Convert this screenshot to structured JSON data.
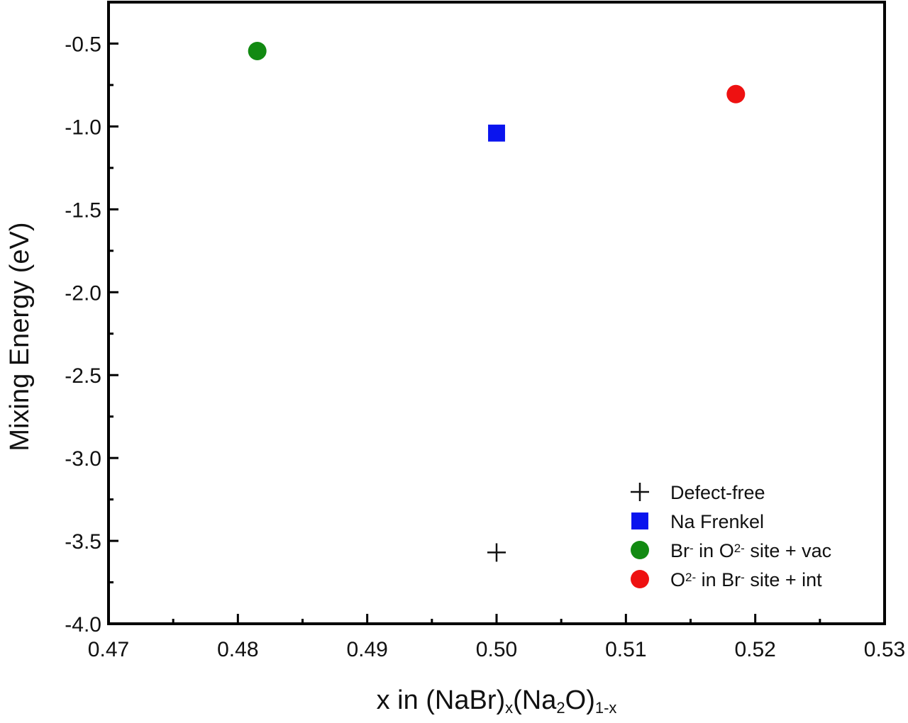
{
  "chart_data": {
    "type": "scatter",
    "title": "",
    "xlabel": {
      "prefix": "x in (NaBr)",
      "sub1": "x",
      "mid": "(Na",
      "sub2": "2",
      "mid2": "O)",
      "sub3": "1-x"
    },
    "ylabel": "Mixing Energy (eV)",
    "xlim": [
      0.47,
      0.53
    ],
    "ylim": [
      -4.0,
      -0.25
    ],
    "xticks": [
      "0.47",
      "0.48",
      "0.49",
      "0.50",
      "0.51",
      "0.52",
      "0.53"
    ],
    "xtick_values": [
      0.47,
      0.48,
      0.49,
      0.5,
      0.51,
      0.52,
      0.53
    ],
    "yticks": [
      "-0.5",
      "-1.0",
      "-1.5",
      "-2.0",
      "-2.5",
      "-3.0",
      "-3.5",
      "-4.0"
    ],
    "ytick_values": [
      -0.5,
      -1.0,
      -1.5,
      -2.0,
      -2.5,
      -3.0,
      -3.5,
      -4.0
    ],
    "grid": false,
    "legend_position": "bottom-right",
    "series": [
      {
        "id": "defect-free",
        "marker": "plus",
        "color": "#111111",
        "legend_parts": [
          {
            "t": "Defect-free"
          }
        ],
        "points": [
          {
            "x": 0.5,
            "y": -3.57
          }
        ]
      },
      {
        "id": "na-frenkel",
        "marker": "square",
        "color": "#0a14ee",
        "legend_parts": [
          {
            "t": "Na Frenkel"
          }
        ],
        "points": [
          {
            "x": 0.5,
            "y": -1.04
          }
        ]
      },
      {
        "id": "br-in-o-site-vac",
        "marker": "circle",
        "color": "#128a12",
        "legend_parts": [
          {
            "t": "Br"
          },
          {
            "t": "-",
            "sup": true
          },
          {
            "t": " in O"
          },
          {
            "t": "2-",
            "sup": true
          },
          {
            "t": " site + vac"
          }
        ],
        "points": [
          {
            "x": 0.4815,
            "y": -0.545
          }
        ]
      },
      {
        "id": "o-in-br-site-int",
        "marker": "circle",
        "color": "#ee1111",
        "legend_parts": [
          {
            "t": "O"
          },
          {
            "t": "2-",
            "sup": true
          },
          {
            "t": " in Br"
          },
          {
            "t": "-",
            "sup": true
          },
          {
            "t": " site + int"
          }
        ],
        "points": [
          {
            "x": 0.5185,
            "y": -0.805
          }
        ]
      }
    ]
  }
}
